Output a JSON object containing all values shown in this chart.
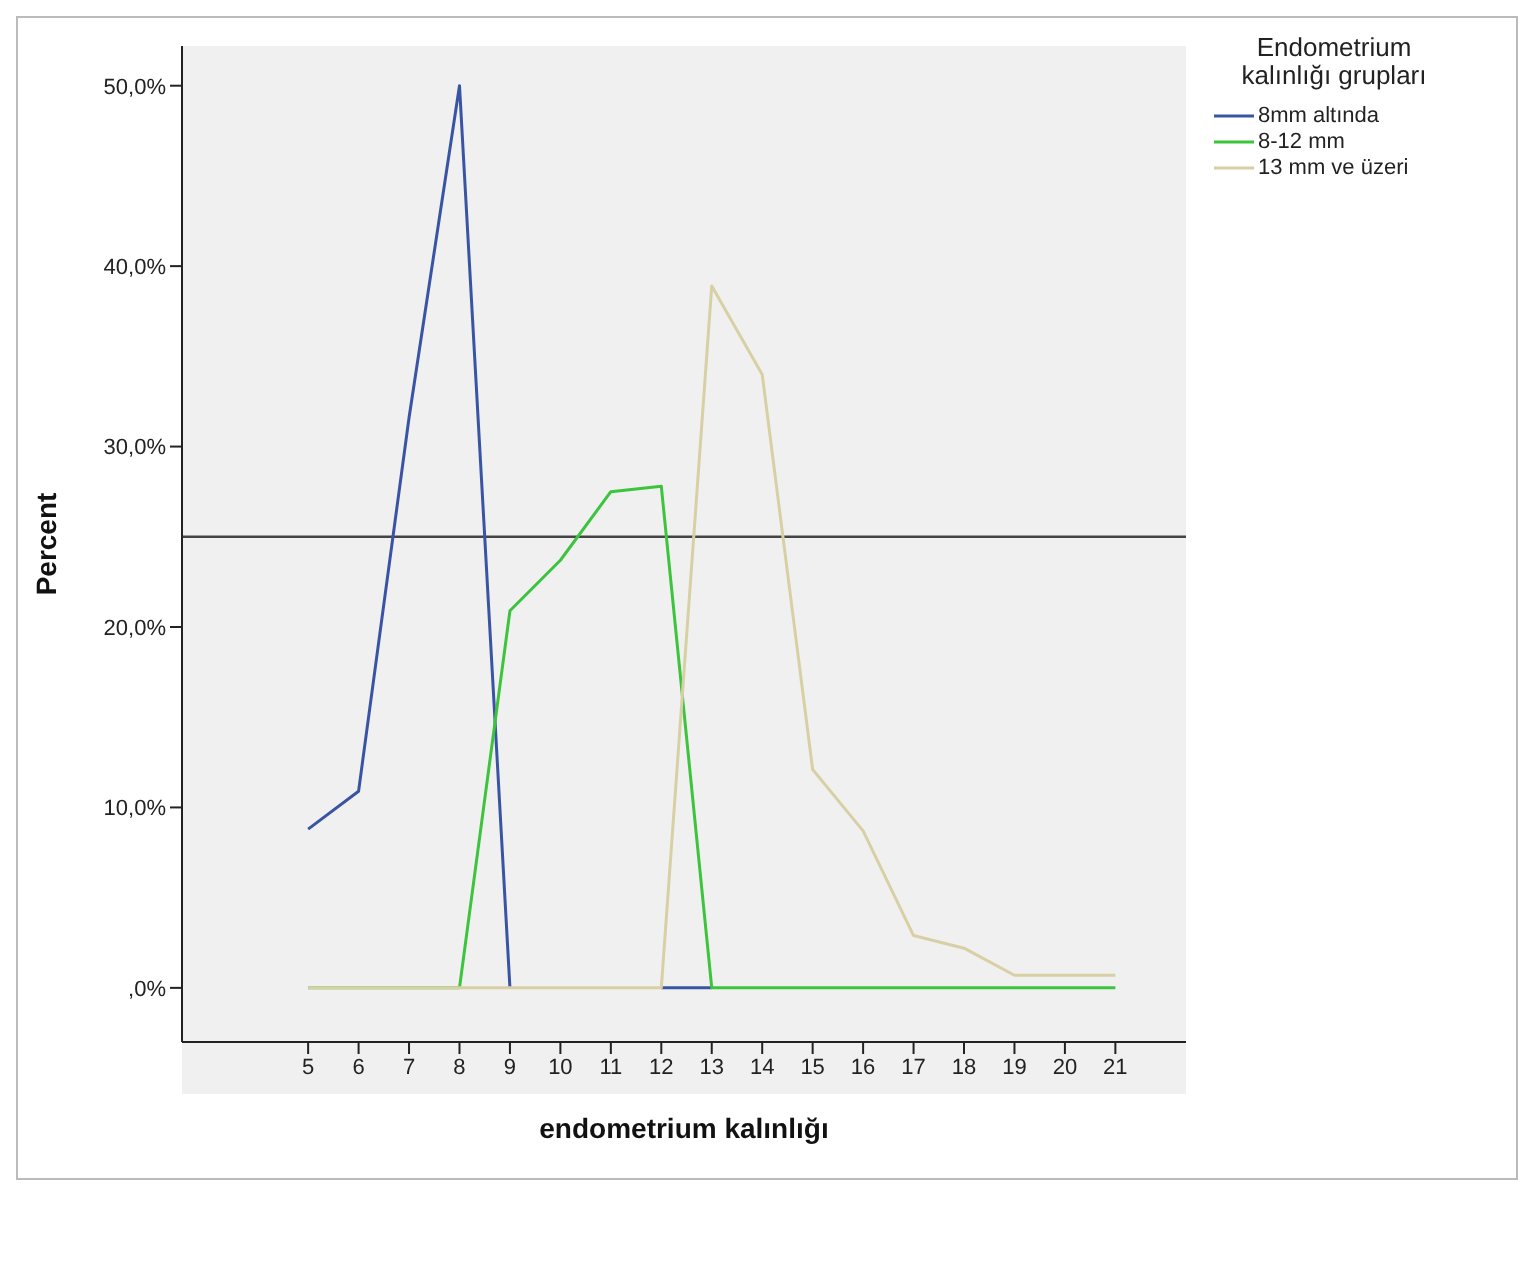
{
  "chart_data": {
    "type": "line",
    "xlabel": "endometrium kalınlığı",
    "ylabel": "Percent",
    "legend_title": "Endometrium kalınlığı grupları",
    "x": [
      5,
      6,
      7,
      8,
      9,
      10,
      11,
      12,
      13,
      14,
      15,
      16,
      17,
      18,
      19,
      20,
      21
    ],
    "series": [
      {
        "name": "8mm altında",
        "color": "#3a54a4",
        "values": [
          8.8,
          10.9,
          31.6,
          50,
          0,
          null,
          null,
          0,
          0,
          null,
          null,
          null,
          null,
          null,
          null,
          null,
          null
        ]
      },
      {
        "name": "8-12 mm",
        "color": "#3cc43c",
        "values": [
          0,
          0,
          0,
          0,
          20.9,
          23.7,
          27.5,
          27.8,
          0,
          0,
          0,
          0,
          0,
          0,
          0,
          0,
          0
        ]
      },
      {
        "name": "13 mm ve üzeri",
        "color": "#d8d0a4",
        "values": [
          0,
          0,
          0,
          0,
          0,
          0,
          0,
          0,
          38.9,
          34.0,
          12.1,
          8.7,
          2.9,
          2.2,
          0.7,
          0.7,
          0.7
        ]
      }
    ],
    "xlim": [
      2.5,
      22.4
    ],
    "xticks": [
      5,
      6,
      7,
      8,
      9,
      10,
      11,
      12,
      13,
      14,
      15,
      16,
      17,
      18,
      19,
      20,
      21
    ],
    "ylim": [
      -3,
      52.2
    ],
    "yticks": [
      {
        "value": 0,
        "label": ",0%"
      },
      {
        "value": 10,
        "label": "10,0%"
      },
      {
        "value": 20,
        "label": "20,0%"
      },
      {
        "value": 30,
        "label": "30,0%"
      },
      {
        "value": 40,
        "label": "40,0%"
      },
      {
        "value": 50,
        "label": "50,0%"
      }
    ],
    "ref_lines": [
      {
        "axis": "y",
        "value": 25,
        "label": null,
        "color": "#444444"
      }
    ],
    "grid": false,
    "legend": "top right",
    "marker": "none",
    "line_style": "solid"
  }
}
